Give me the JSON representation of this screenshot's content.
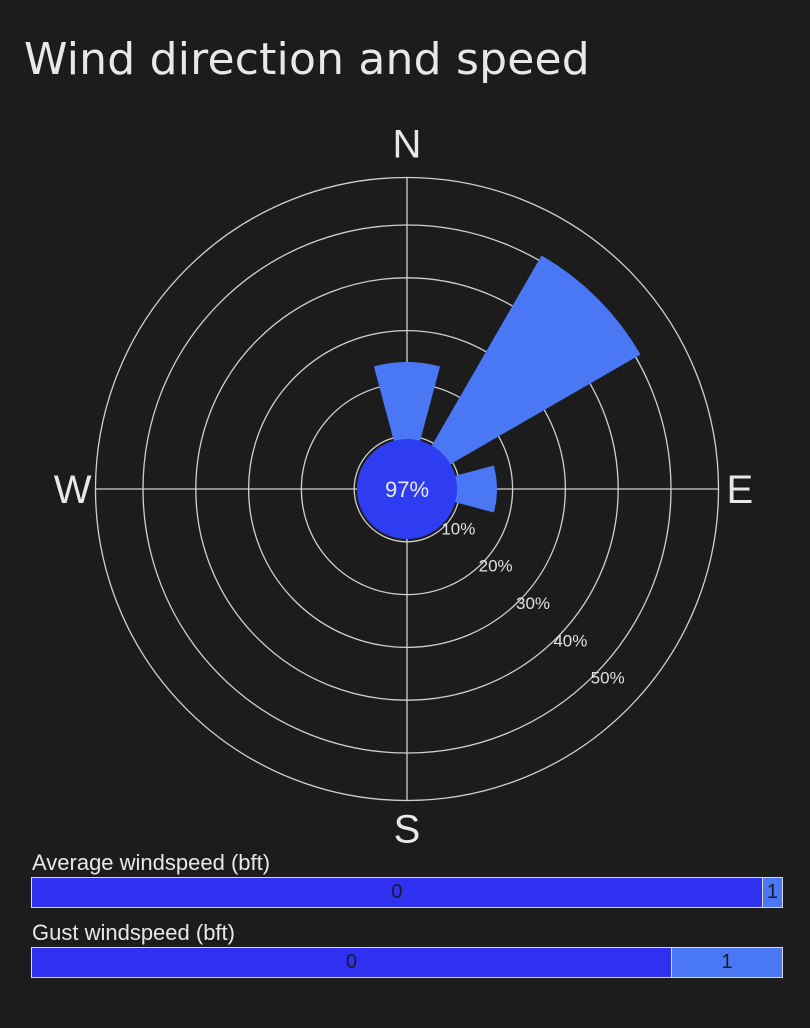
{
  "card": {
    "title": "Wind direction and speed"
  },
  "colors": {
    "background": "#1c1c1c",
    "grid": "#d0d0d0",
    "petal": "#4a78f5",
    "calm": "#2e3df2",
    "bft0": "#3030f0",
    "bft1": "#4a78f5"
  },
  "chart_data": {
    "type": "polar-bar",
    "cardinals": {
      "n": "N",
      "e": "E",
      "s": "S",
      "w": "W"
    },
    "calm_label": "97%",
    "calm_percent": 97,
    "rings": [
      {
        "value": 10,
        "label": "10%"
      },
      {
        "value": 20,
        "label": "20%"
      },
      {
        "value": 30,
        "label": "30%"
      },
      {
        "value": 40,
        "label": "40%"
      },
      {
        "value": 50,
        "label": "50%"
      }
    ],
    "rmax_percent": 59,
    "directions": [
      {
        "direction": "N",
        "angle_deg": 0,
        "percent": 24
      },
      {
        "direction": "NE",
        "angle_deg": 45,
        "percent": 51
      },
      {
        "direction": "E",
        "angle_deg": 90,
        "percent": 17
      }
    ],
    "bars": [
      {
        "label": "Average windspeed (bft)",
        "segments": [
          {
            "bft": "0",
            "fraction": 0.973
          },
          {
            "bft": "1",
            "fraction": 0.027
          }
        ]
      },
      {
        "label": "Gust windspeed (bft)",
        "segments": [
          {
            "bft": "0",
            "fraction": 0.852
          },
          {
            "bft": "1",
            "fraction": 0.148
          }
        ]
      }
    ]
  }
}
